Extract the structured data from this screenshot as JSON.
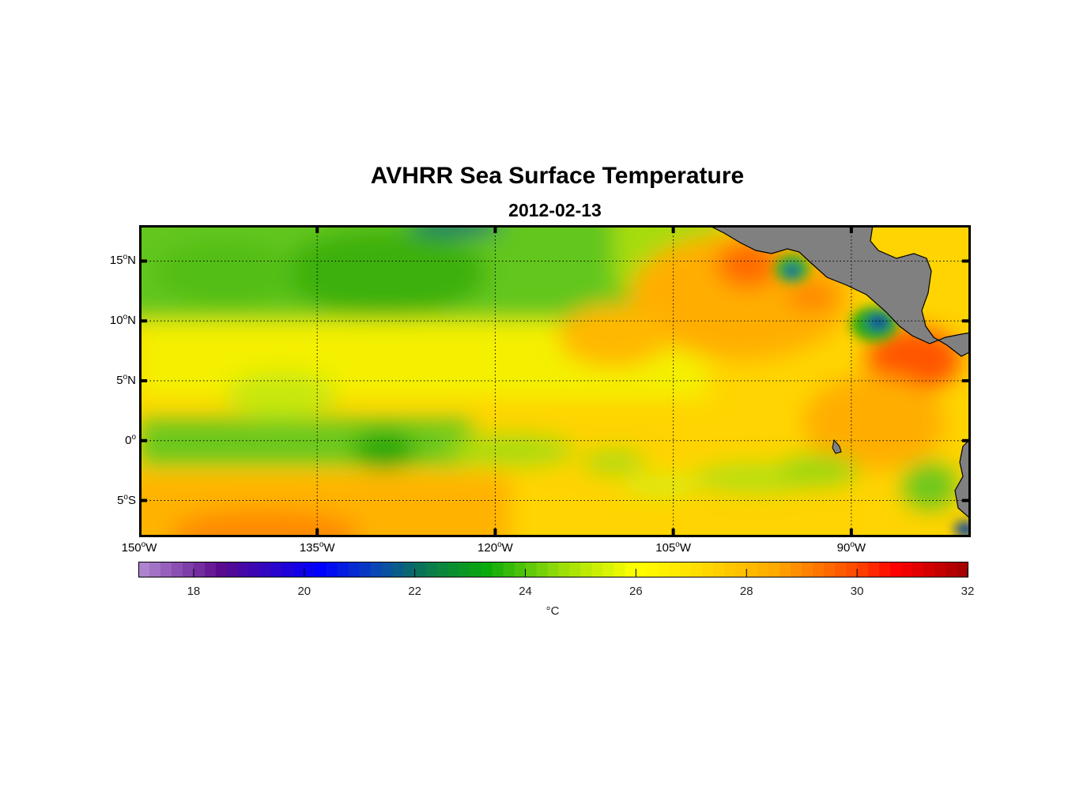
{
  "chart_data": {
    "type": "heatmap",
    "title": "AVHRR Sea Surface Temperature",
    "subtitle": "2012-02-13",
    "lon_range": [
      -150,
      -80
    ],
    "lat_range": [
      -8,
      18
    ],
    "x_ticks": [
      {
        "value": -150,
        "deg": "150",
        "hemi": "W"
      },
      {
        "value": -135,
        "deg": "135",
        "hemi": "W"
      },
      {
        "value": -120,
        "deg": "120",
        "hemi": "W"
      },
      {
        "value": -105,
        "deg": "105",
        "hemi": "W"
      },
      {
        "value": -90,
        "deg": "90",
        "hemi": "W"
      }
    ],
    "y_ticks": [
      {
        "value": 15,
        "deg": "15",
        "hemi": "N"
      },
      {
        "value": 10,
        "deg": "10",
        "hemi": "N"
      },
      {
        "value": 5,
        "deg": "5",
        "hemi": "N"
      },
      {
        "value": 0,
        "deg": "0",
        "hemi": ""
      },
      {
        "value": -5,
        "deg": "5",
        "hemi": "S"
      }
    ],
    "grid": "dotted",
    "colorbar": {
      "range": [
        17,
        32
      ],
      "ticks": [
        "18",
        "20",
        "22",
        "24",
        "26",
        "28",
        "30",
        "32"
      ],
      "unit": "°C",
      "stops": [
        [
          17,
          "#b48cd2"
        ],
        [
          18.5,
          "#5a0a8c"
        ],
        [
          20.3,
          "#0000ff"
        ],
        [
          21.3,
          "#0a46b4"
        ],
        [
          22.2,
          "#0a7850"
        ],
        [
          23.3,
          "#0aaa0a"
        ],
        [
          24.6,
          "#96dc0a"
        ],
        [
          26,
          "#ffff00"
        ],
        [
          27,
          "#ffe100"
        ],
        [
          28.5,
          "#ffaa00"
        ],
        [
          30,
          "#ff4600"
        ],
        [
          30.7,
          "#ff0000"
        ],
        [
          32,
          "#a00000"
        ]
      ]
    },
    "land_color": "#808080"
  }
}
